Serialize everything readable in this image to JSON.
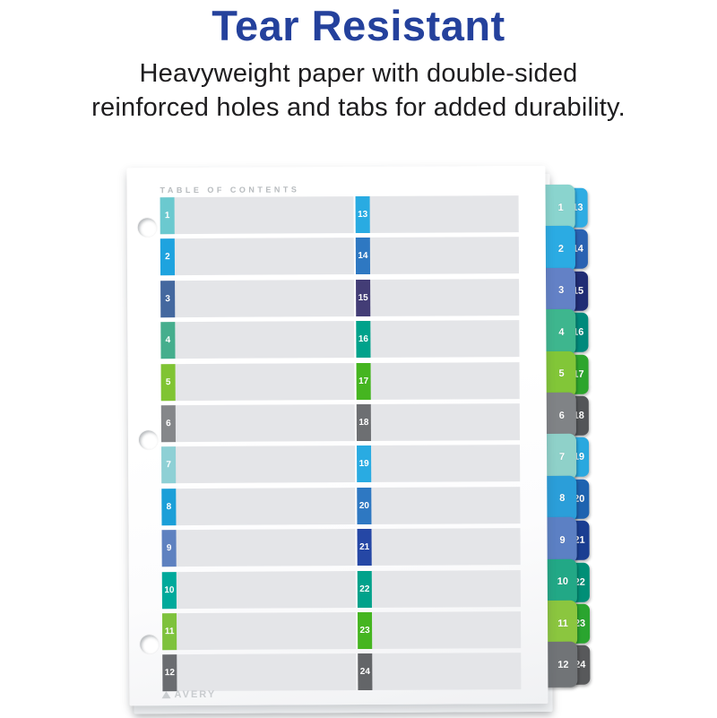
{
  "header": {
    "title": "Tear Resistant",
    "subtitle_line1": "Heavyweight paper with double-sided",
    "subtitle_line2": "reinforced holes and tabs for added durability.",
    "title_color": "#24419c",
    "subtitle_color": "#1e1d1f"
  },
  "sheet": {
    "toc_label": "TABLE OF CONTENTS",
    "brand": "AVERY",
    "bar_color": "#e4e5e8",
    "rows": [
      {
        "num": "1",
        "pair_num": "13",
        "box": "#6BC9CF",
        "pair_box": "#29ABE2",
        "tab": "#8AD4CE",
        "pair_tab": "#2FACE3"
      },
      {
        "num": "2",
        "pair_num": "14",
        "box": "#1EA3DF",
        "pair_box": "#2E78C2",
        "tab": "#2BABE3",
        "pair_tab": "#2A62B2"
      },
      {
        "num": "3",
        "pair_num": "15",
        "box": "#44689F",
        "pair_box": "#433D76",
        "tab": "#6381C6",
        "pair_tab": "#202C74"
      },
      {
        "num": "4",
        "pair_num": "16",
        "box": "#45AE8D",
        "pair_box": "#00A28B",
        "tab": "#3EB68E",
        "pair_tab": "#00897B"
      },
      {
        "num": "5",
        "pair_num": "17",
        "box": "#80C433",
        "pair_box": "#45B520",
        "tab": "#82C638",
        "pair_tab": "#2DA52D"
      },
      {
        "num": "6",
        "pair_num": "18",
        "box": "#85878A",
        "pair_box": "#6D6F72",
        "tab": "#808386",
        "pair_tab": "#535558"
      },
      {
        "num": "7",
        "pair_num": "19",
        "box": "#8ED0D5",
        "pair_box": "#29ABE2",
        "tab": "#8FD1C9",
        "pair_tab": "#29A8DF"
      },
      {
        "num": "8",
        "pair_num": "20",
        "box": "#1B9FD8",
        "pair_box": "#2E78C2",
        "tab": "#2B9ED9",
        "pair_tab": "#1E63B0"
      },
      {
        "num": "9",
        "pair_num": "21",
        "box": "#5E81C0",
        "pair_box": "#2547A5",
        "tab": "#5C80C4",
        "pair_tab": "#1B3E92"
      },
      {
        "num": "10",
        "pair_num": "22",
        "box": "#00A99B",
        "pair_box": "#00A28B",
        "tab": "#22A886",
        "pair_tab": "#008F77"
      },
      {
        "num": "11",
        "pair_num": "23",
        "box": "#7EC23C",
        "pair_box": "#45B520",
        "tab": "#8BC63F",
        "pair_tab": "#2AA52F"
      },
      {
        "num": "12",
        "pair_num": "24",
        "box": "#6A6C70",
        "pair_box": "#636568",
        "tab": "#717477",
        "pair_tab": "#58595B"
      }
    ]
  }
}
